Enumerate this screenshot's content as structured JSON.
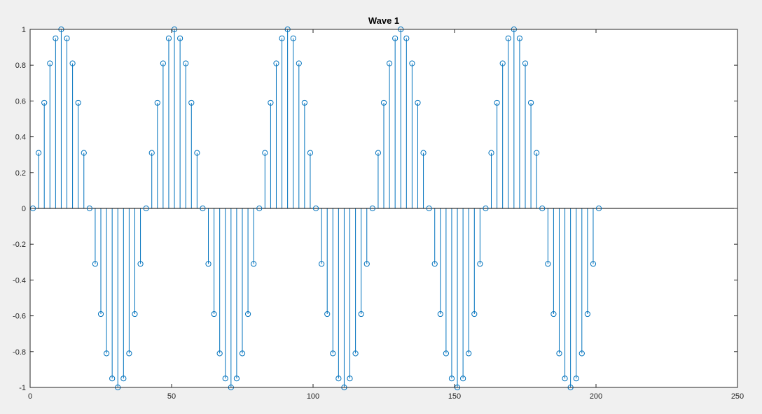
{
  "colors": {
    "figure_background": "#f0f0f0",
    "axes_background": "#ffffff",
    "axes_color": "#262626",
    "series_color": "#0072bd"
  },
  "chart_data": {
    "type": "stem",
    "title": "Wave 1",
    "xlabel": "",
    "ylabel": "",
    "xlim": [
      0,
      250
    ],
    "ylim": [
      -1,
      1
    ],
    "xticks": [
      0,
      50,
      100,
      150,
      200,
      250
    ],
    "yticks": [
      -1,
      -0.8,
      -0.6,
      -0.4,
      -0.2,
      0,
      0.2,
      0.4,
      0.6,
      0.8,
      1
    ],
    "xtick_labels": [
      "0",
      "50",
      "100",
      "150",
      "200",
      "250"
    ],
    "ytick_labels": [
      "-1",
      "-0.8",
      "-0.6",
      "-0.4",
      "-0.2",
      "0",
      "0.2",
      "0.4",
      "0.6",
      "0.8",
      "1"
    ],
    "grid": false,
    "marker": "open-circle",
    "series": [
      {
        "x": [
          1,
          3,
          5,
          7,
          9,
          11,
          13,
          15,
          17,
          19,
          21,
          23,
          25,
          27,
          29,
          31,
          33,
          35,
          37,
          39,
          41,
          43,
          45,
          47,
          49,
          51,
          53,
          55,
          57,
          59,
          61,
          63,
          65,
          67,
          69,
          71,
          73,
          75,
          77,
          79,
          81,
          83,
          85,
          87,
          89,
          91,
          93,
          95,
          97,
          99,
          101,
          103,
          105,
          107,
          109,
          111,
          113,
          115,
          117,
          119,
          121,
          123,
          125,
          127,
          129,
          131,
          133,
          135,
          137,
          139,
          141,
          143,
          145,
          147,
          149,
          151,
          153,
          155,
          157,
          159,
          161,
          163,
          165,
          167,
          169,
          171,
          173,
          175,
          177,
          179,
          181,
          183,
          185,
          187,
          189,
          191,
          193,
          195,
          197,
          199,
          201
        ],
        "y": [
          0,
          0.31,
          0.59,
          0.81,
          0.95,
          1,
          0.95,
          0.81,
          0.59,
          0.31,
          0,
          -0.31,
          -0.59,
          -0.81,
          -0.95,
          -1,
          -0.95,
          -0.81,
          -0.59,
          -0.31,
          0,
          0.31,
          0.59,
          0.81,
          0.95,
          1,
          0.95,
          0.81,
          0.59,
          0.31,
          0,
          -0.31,
          -0.59,
          -0.81,
          -0.95,
          -1,
          -0.95,
          -0.81,
          -0.59,
          -0.31,
          0,
          0.31,
          0.59,
          0.81,
          0.95,
          1,
          0.95,
          0.81,
          0.59,
          0.31,
          0,
          -0.31,
          -0.59,
          -0.81,
          -0.95,
          -1,
          -0.95,
          -0.81,
          -0.59,
          -0.31,
          0,
          0.31,
          0.59,
          0.81,
          0.95,
          1,
          0.95,
          0.81,
          0.59,
          0.31,
          0,
          -0.31,
          -0.59,
          -0.81,
          -0.95,
          -1,
          -0.95,
          -0.81,
          -0.59,
          -0.31,
          0,
          0.31,
          0.59,
          0.81,
          0.95,
          1,
          0.95,
          0.81,
          0.59,
          0.31,
          0,
          -0.31,
          -0.59,
          -0.81,
          -0.95,
          -1,
          -0.95,
          -0.81,
          -0.59,
          -0.31,
          0
        ]
      }
    ]
  }
}
